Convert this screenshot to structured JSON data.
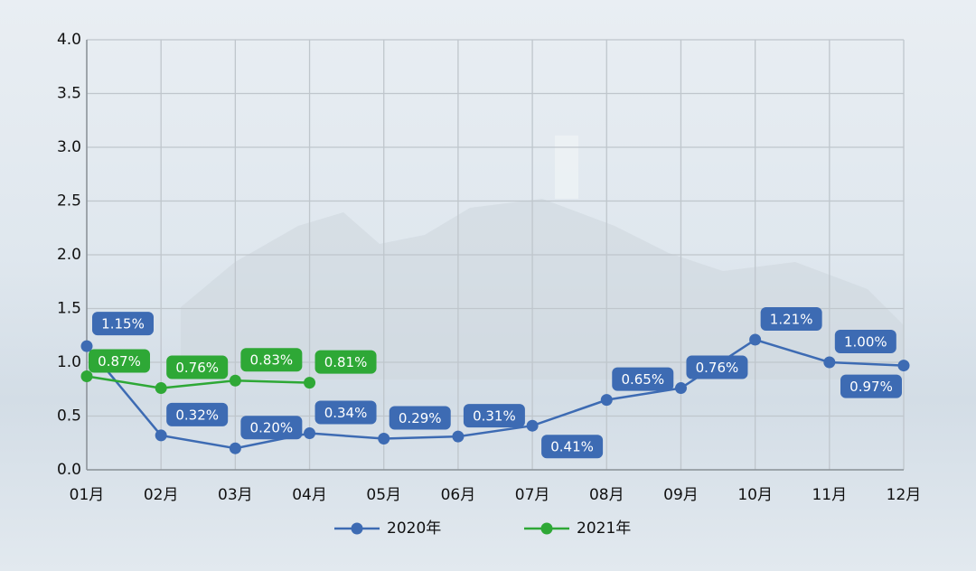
{
  "chart_data": {
    "type": "line",
    "categories": [
      "01月",
      "02月",
      "03月",
      "04月",
      "05月",
      "06月",
      "07月",
      "08月",
      "09月",
      "10月",
      "11月",
      "12月"
    ],
    "series": [
      {
        "name": "2020年",
        "color": "#3d6bb3",
        "values": [
          1.15,
          0.32,
          0.2,
          0.34,
          0.29,
          0.31,
          0.41,
          0.65,
          0.76,
          1.21,
          1.0,
          0.97
        ],
        "value_labels": [
          "1.15%",
          "0.32%",
          "0.20%",
          "0.34%",
          "0.29%",
          "0.31%",
          "0.41%",
          "0.65%",
          "0.76%",
          "1.21%",
          "1.00%",
          "0.97%"
        ]
      },
      {
        "name": "2021年",
        "color": "#2ea836",
        "values": [
          0.87,
          0.76,
          0.83,
          0.81,
          null,
          null,
          null,
          null,
          null,
          null,
          null,
          null
        ],
        "value_labels": [
          "0.87%",
          "0.76%",
          "0.83%",
          "0.81%",
          null,
          null,
          null,
          null,
          null,
          null,
          null,
          null
        ]
      }
    ],
    "ylim": [
      0,
      4
    ],
    "yticks": [
      {
        "value": 0,
        "label": "0.0"
      },
      0.5,
      {
        "value": 1,
        "label": "1.0"
      },
      1.5,
      {
        "value": 2,
        "label": "2.0"
      },
      2.5,
      {
        "value": 3,
        "label": "3.0"
      },
      3.5,
      {
        "value": 4,
        "label": "4.0"
      }
    ],
    "grid": true,
    "legend": "bottom"
  }
}
